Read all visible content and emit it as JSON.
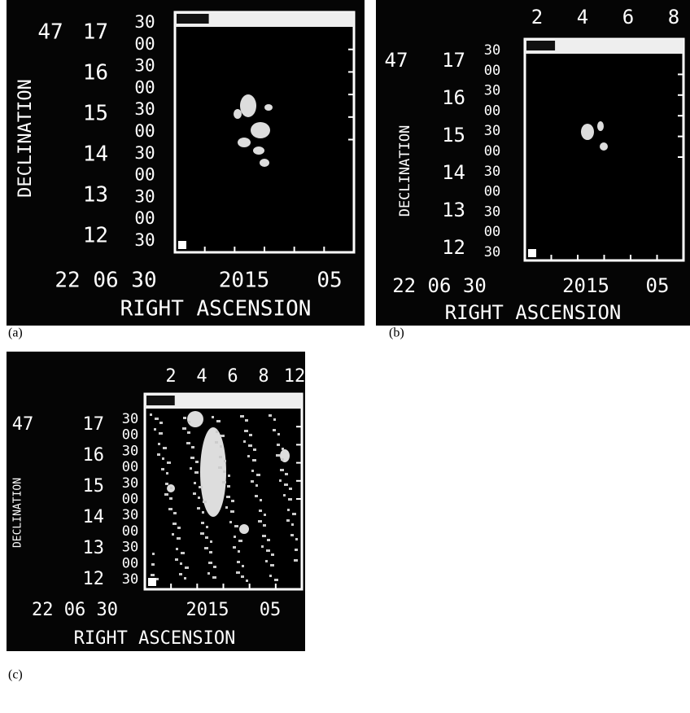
{
  "panels": [
    {
      "label": "(a)",
      "y_title": "DECLINATION",
      "dec_degree": "47",
      "dec_labels": [
        "17",
        "16",
        "15",
        "14",
        "13",
        "12"
      ],
      "dec_minutes": [
        "30",
        "00",
        "30",
        "00",
        "30",
        "00",
        "30",
        "00",
        "30",
        "00",
        "30"
      ],
      "ra_labels": [
        "22 06 30",
        "2015",
        "05"
      ],
      "x_title": "RIGHT ASCENSION"
    },
    {
      "label": "(b)",
      "scale_labels": [
        "2",
        "4",
        "6",
        "8"
      ],
      "y_title": "DECLINATION",
      "dec_degree": "47",
      "dec_labels": [
        "17",
        "16",
        "15",
        "14",
        "13",
        "12"
      ],
      "dec_minutes": [
        "30",
        "00",
        "30",
        "00",
        "30",
        "00",
        "30",
        "00",
        "30",
        "00",
        "30"
      ],
      "ra_labels": [
        "22 06 30",
        "2015",
        "05"
      ],
      "x_title": "RIGHT ASCENSION"
    },
    {
      "label": "(c)",
      "scale_labels": [
        "2",
        "4",
        "6",
        "8",
        "12"
      ],
      "y_title": "DECLINATION",
      "dec_degree": "47",
      "dec_labels": [
        "17",
        "16",
        "15",
        "14",
        "13",
        "12"
      ],
      "dec_minutes": [
        "30",
        "00",
        "30",
        "00",
        "30",
        "00",
        "30",
        "00",
        "30",
        "00",
        "30"
      ],
      "ra_labels": [
        "22 06 30",
        "2015",
        "05"
      ],
      "x_title": "RIGHT ASCENSION"
    }
  ]
}
